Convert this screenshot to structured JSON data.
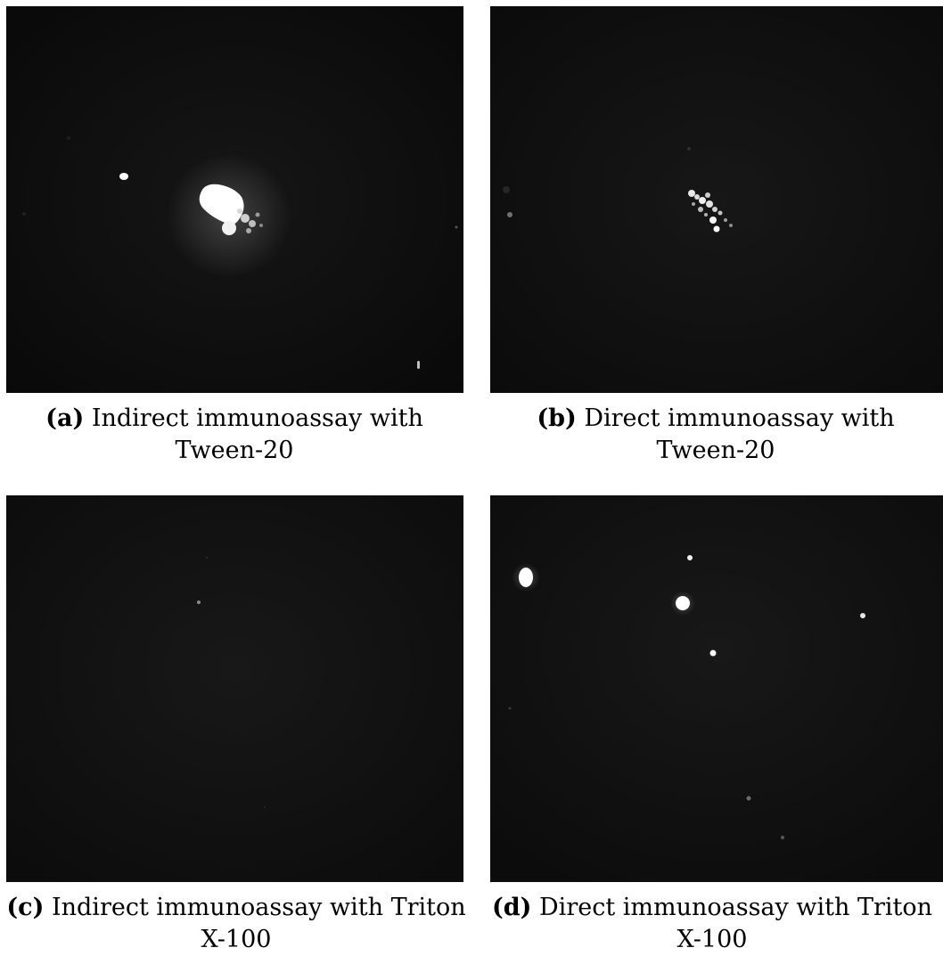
{
  "figures": [
    {
      "id": "a",
      "tag": "(a)",
      "caption_line1": "Indirect immunoassay with",
      "caption_line2": "Tween-20"
    },
    {
      "id": "b",
      "tag": "(b)",
      "caption_line1": "Direct immunoassay with",
      "caption_line2": "Tween-20"
    },
    {
      "id": "c",
      "tag": "(c)",
      "caption_line1": "Indirect immunoassay with Triton",
      "caption_line2": "X-100"
    },
    {
      "id": "d",
      "tag": "(d)",
      "caption_line1": "Direct immunoassay with Triton",
      "caption_line2": "X-100"
    }
  ]
}
